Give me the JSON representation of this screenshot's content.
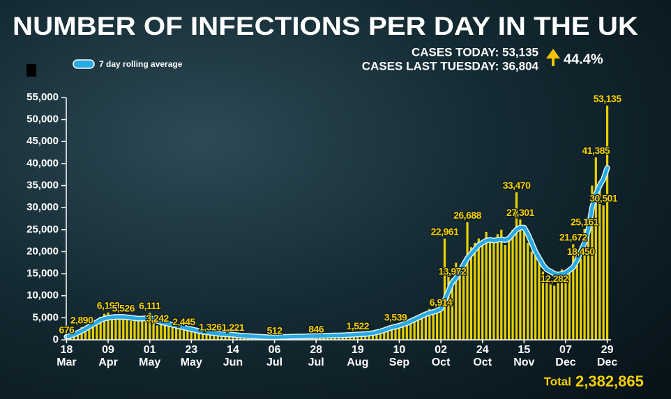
{
  "header": {
    "cases_today": "CASES TODAY: 53,135",
    "cases_last_tuesday": "CASES LAST TUESDAY: 36,804",
    "change": "44.4%",
    "total_label": "Total",
    "total_value": "2,382,865"
  },
  "chart_data": {
    "type": "bar",
    "title": "NUMBER OF INFECTIONS PER DAY IN THE UK",
    "x": [
      0,
      2,
      4,
      6,
      8,
      10,
      12,
      14,
      16,
      18,
      20,
      22,
      24,
      26,
      28,
      30,
      32,
      34,
      36,
      38,
      40,
      42,
      44,
      46,
      48,
      50,
      52,
      54,
      56,
      58,
      60,
      62,
      64,
      66,
      68,
      70,
      72,
      74,
      76,
      78,
      80,
      82,
      84,
      86,
      88,
      90,
      92,
      94,
      96,
      98,
      100,
      102,
      104,
      106,
      108,
      110,
      112,
      114,
      116,
      118,
      120,
      122,
      124,
      126,
      128,
      130,
      132,
      134,
      136,
      138,
      140,
      142,
      144,
      146,
      148,
      150,
      152,
      154,
      156,
      158,
      160,
      162,
      164,
      166,
      168,
      170,
      172,
      174,
      176,
      178,
      180,
      182,
      184,
      186,
      188,
      190,
      192,
      194,
      196,
      198,
      200,
      202,
      204,
      206,
      208,
      210,
      212,
      214,
      216,
      218,
      220,
      222,
      224,
      226,
      228,
      230,
      232,
      234,
      236,
      238,
      240,
      242,
      244,
      246,
      248,
      250,
      252,
      254,
      256,
      258,
      260,
      262,
      264,
      266,
      268,
      270,
      272,
      274,
      276,
      278,
      280,
      282,
      284,
      286
    ],
    "series": [
      {
        "color": "#e8d000",
        "values": [
          676,
          1000,
          1500,
          2100,
          2890,
          3000,
          3500,
          4300,
          4500,
          5200,
          5900,
          6199,
          4800,
          5300,
          4600,
          5526,
          4900,
          4300,
          5000,
          4500,
          4700,
          5100,
          6111,
          4000,
          3242,
          4000,
          3500,
          3300,
          3400,
          2900,
          2700,
          2445,
          2400,
          2100,
          2000,
          1800,
          1700,
          1600,
          1326,
          1400,
          1300,
          1200,
          1100,
          1100,
          1221,
          1000,
          900,
          850,
          800,
          750,
          700,
          650,
          600,
          580,
          560,
          512,
          600,
          650,
          700,
          680,
          750,
          700,
          750,
          800,
          780,
          820,
          846,
          900,
          950,
          880,
          1000,
          1050,
          900,
          1100,
          1000,
          1150,
          1200,
          1522,
          1100,
          1300,
          1200,
          1400,
          1700,
          1900,
          2000,
          2700,
          3000,
          3539,
          2900,
          3200,
          3900,
          4300,
          4400,
          5000,
          6100,
          6200,
          7000,
          6900,
          6000,
          6914,
          22961,
          15000,
          13972,
          17500,
          15000,
          17000,
          26688,
          21000,
          22000,
          23000,
          21500,
          24500,
          23000,
          22000,
          24000,
          25000,
          21500,
          22500,
          25000,
          33470,
          27301,
          24500,
          22000,
          20000,
          19000,
          17500,
          15500,
          14000,
          13000,
          12282,
          15000,
          16000,
          15500,
          16500,
          21672,
          20000,
          18450,
          25161,
          27000,
          35000,
          41385,
          36000,
          30501,
          53135
        ]
      },
      {
        "name": "7 day rolling average",
        "type": "line",
        "color": "#29a9e1",
        "values": [
          700,
          900,
          1200,
          1600,
          2000,
          2500,
          3000,
          3500,
          4000,
          4500,
          4800,
          5000,
          5100,
          5200,
          5200,
          5200,
          5100,
          5000,
          4900,
          4800,
          4800,
          4900,
          5000,
          4600,
          4300,
          4000,
          3800,
          3600,
          3400,
          3200,
          3000,
          2800,
          2600,
          2400,
          2200,
          2000,
          1800,
          1700,
          1600,
          1500,
          1400,
          1300,
          1250,
          1200,
          1150,
          1050,
          950,
          900,
          850,
          800,
          750,
          700,
          650,
          620,
          600,
          600,
          620,
          650,
          680,
          700,
          720,
          740,
          760,
          780,
          800,
          820,
          850,
          880,
          900,
          930,
          960,
          990,
          1000,
          1030,
          1060,
          1100,
          1150,
          1200,
          1250,
          1300,
          1400,
          1500,
          1700,
          1900,
          2200,
          2500,
          2800,
          3000,
          3200,
          3500,
          3800,
          4200,
          4600,
          5000,
          5400,
          5800,
          6100,
          6300,
          6600,
          7000,
          9000,
          11000,
          13000,
          14000,
          15500,
          17000,
          18500,
          19500,
          20500,
          21500,
          22000,
          22500,
          22700,
          22500,
          22700,
          22800,
          22600,
          23000,
          24000,
          25000,
          25500,
          25500,
          24000,
          22000,
          20000,
          18500,
          17000,
          16000,
          15500,
          15000,
          14800,
          15000,
          15200,
          15800,
          16500,
          18000,
          20000,
          22000,
          25000,
          30000,
          33000,
          35000,
          36500,
          39000
        ]
      }
    ],
    "xlim": [
      -2,
      288
    ],
    "xticks": [
      {
        "value": 0,
        "label": "18"
      },
      {
        "value": 22,
        "label": "09"
      },
      {
        "value": 44,
        "label": "01"
      },
      {
        "value": 66,
        "label": "23"
      },
      {
        "value": 88,
        "label": "14"
      },
      {
        "value": 110,
        "label": "06"
      },
      {
        "value": 132,
        "label": "28"
      },
      {
        "value": 154,
        "label": "19"
      },
      {
        "value": 176,
        "label": "10"
      },
      {
        "value": 198,
        "label": "02"
      },
      {
        "value": 220,
        "label": "24"
      },
      {
        "value": 242,
        "label": "15"
      },
      {
        "value": 264,
        "label": "07"
      },
      {
        "value": 286,
        "label": "29"
      }
    ],
    "xtick_months": [
      "Mar",
      "Apr",
      "May",
      "May",
      "Jun",
      "Jul",
      "Jul",
      "Aug",
      "Sep",
      "Oct",
      "Oct",
      "Nov",
      "Dec",
      "Dec"
    ],
    "ylim": [
      0,
      55000
    ],
    "yticks": [
      0,
      {
        "value": 5000,
        "label": "5,000"
      },
      {
        "value": 10000,
        "label": "10,000"
      },
      {
        "value": 15000,
        "label": "15,000"
      },
      {
        "value": 20000,
        "label": "20,000"
      },
      {
        "value": 25000,
        "label": "25,000"
      },
      {
        "value": 30000,
        "label": "30,000"
      },
      {
        "value": 35000,
        "label": "35,000"
      },
      {
        "value": 40000,
        "label": "40,000"
      },
      {
        "value": 45000,
        "label": "45,000"
      },
      {
        "value": 50000,
        "label": "50,000"
      },
      {
        "value": 55000,
        "label": "55,000"
      }
    ],
    "annotations": [
      {
        "x": 0,
        "value": 676,
        "label": "676"
      },
      {
        "x": 8,
        "value": 2890,
        "label": "2,890"
      },
      {
        "x": 22,
        "value": 6199,
        "label": "6,199"
      },
      {
        "x": 30,
        "value": 5526,
        "label": "5,526"
      },
      {
        "x": 44,
        "value": 6111,
        "label": "6,111"
      },
      {
        "x": 48,
        "value": 3242,
        "label": "3,242"
      },
      {
        "x": 62,
        "value": 2445,
        "label": "2,445"
      },
      {
        "x": 76,
        "value": 1326,
        "label": "1,326"
      },
      {
        "x": 88,
        "value": 1221,
        "label": "1,221"
      },
      {
        "x": 110,
        "value": 512,
        "label": "512"
      },
      {
        "x": 132,
        "value": 846,
        "label": "846"
      },
      {
        "x": 154,
        "value": 1522,
        "label": "1,522"
      },
      {
        "x": 174,
        "value": 3539,
        "label": "3,539"
      },
      {
        "x": 198,
        "value": 6914,
        "label": "6,914"
      },
      {
        "x": 200,
        "value": 22961,
        "label": "22,961"
      },
      {
        "x": 204,
        "value": 13972,
        "label": "13,972"
      },
      {
        "x": 212,
        "value": 26688,
        "label": "26,688"
      },
      {
        "x": 238,
        "value": 33470,
        "label": "33,470"
      },
      {
        "x": 240,
        "value": 27301,
        "label": "27,301"
      },
      {
        "x": 258,
        "value": 12282,
        "label": "12,282"
      },
      {
        "x": 268,
        "value": 21672,
        "label": "21,672"
      },
      {
        "x": 272,
        "value": 18450,
        "label": "18,450"
      },
      {
        "x": 274,
        "value": 25161,
        "label": "25,161"
      },
      {
        "x": 280,
        "value": 41385,
        "label": "41,385"
      },
      {
        "x": 284,
        "value": 30501,
        "label": "30,501"
      },
      {
        "x": 286,
        "value": 53135,
        "label": "53,135"
      }
    ]
  }
}
